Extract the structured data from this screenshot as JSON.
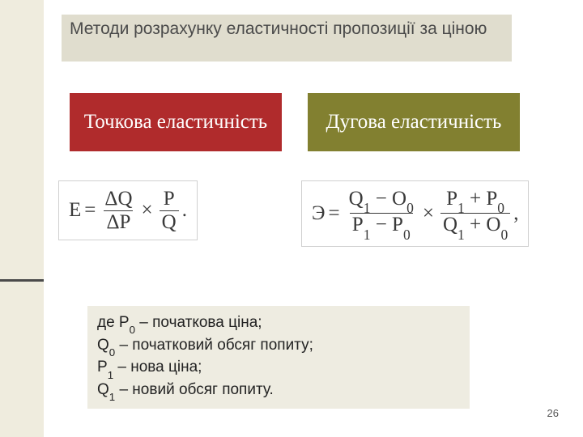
{
  "colors": {
    "sidebar_bg": "#efecde",
    "title_bg": "#e0ddce",
    "title_text": "#4a4a4a",
    "point_box_bg": "#b02b2c",
    "arc_box_bg": "#828030",
    "box_text": "#ffffff",
    "formula_border": "#d0d0d0",
    "formula_text": "#3a3a3a",
    "legend_bg": "#eeece1",
    "sidebar_line": "#4a4a4a"
  },
  "title": "Методи розрахунку еластичності пропозиції за ціною",
  "point": {
    "label": "Точкова еластичність"
  },
  "arc": {
    "label": "Дугова еластичність"
  },
  "formula_point": {
    "lhs": "E",
    "frac1_num": "ΔQ",
    "frac1_den": "ΔP",
    "times": "×",
    "frac2_num": "P",
    "frac2_den": "Q",
    "trail": "."
  },
  "formula_arc": {
    "lhs": "Э",
    "f1_num_a": "Q",
    "f1_num_a_sub": "1",
    "f1_num_op": " − ",
    "f1_num_b": "O",
    "f1_num_b_sub": "0",
    "f1_den_a": "P",
    "f1_den_a_sub": "1",
    "f1_den_op": " − ",
    "f1_den_b": "P",
    "f1_den_b_sub": "0",
    "times": "×",
    "f2_num_a": "P",
    "f2_num_a_sub": "1",
    "f2_num_op": " + ",
    "f2_num_b": "P",
    "f2_num_b_sub": "0",
    "f2_den_a": "Q",
    "f2_den_a_sub": "1",
    "f2_den_op": " + ",
    "f2_den_b": "O",
    "f2_den_b_sub": "0",
    "trail": ","
  },
  "legend": {
    "l1_pre": "де P",
    "l1_sub": "0",
    "l1_post": " – початкова ціна;",
    "l2_pre": "Q",
    "l2_sub": "0",
    "l2_post": " – початковий обсяг попиту;",
    "l3_pre": "P",
    "l3_sub": "1",
    "l3_post": " – нова ціна;",
    "l4_pre": "Q",
    "l4_sub": "1",
    "l4_post": " – новий обсяг попиту."
  },
  "page_number": "26"
}
